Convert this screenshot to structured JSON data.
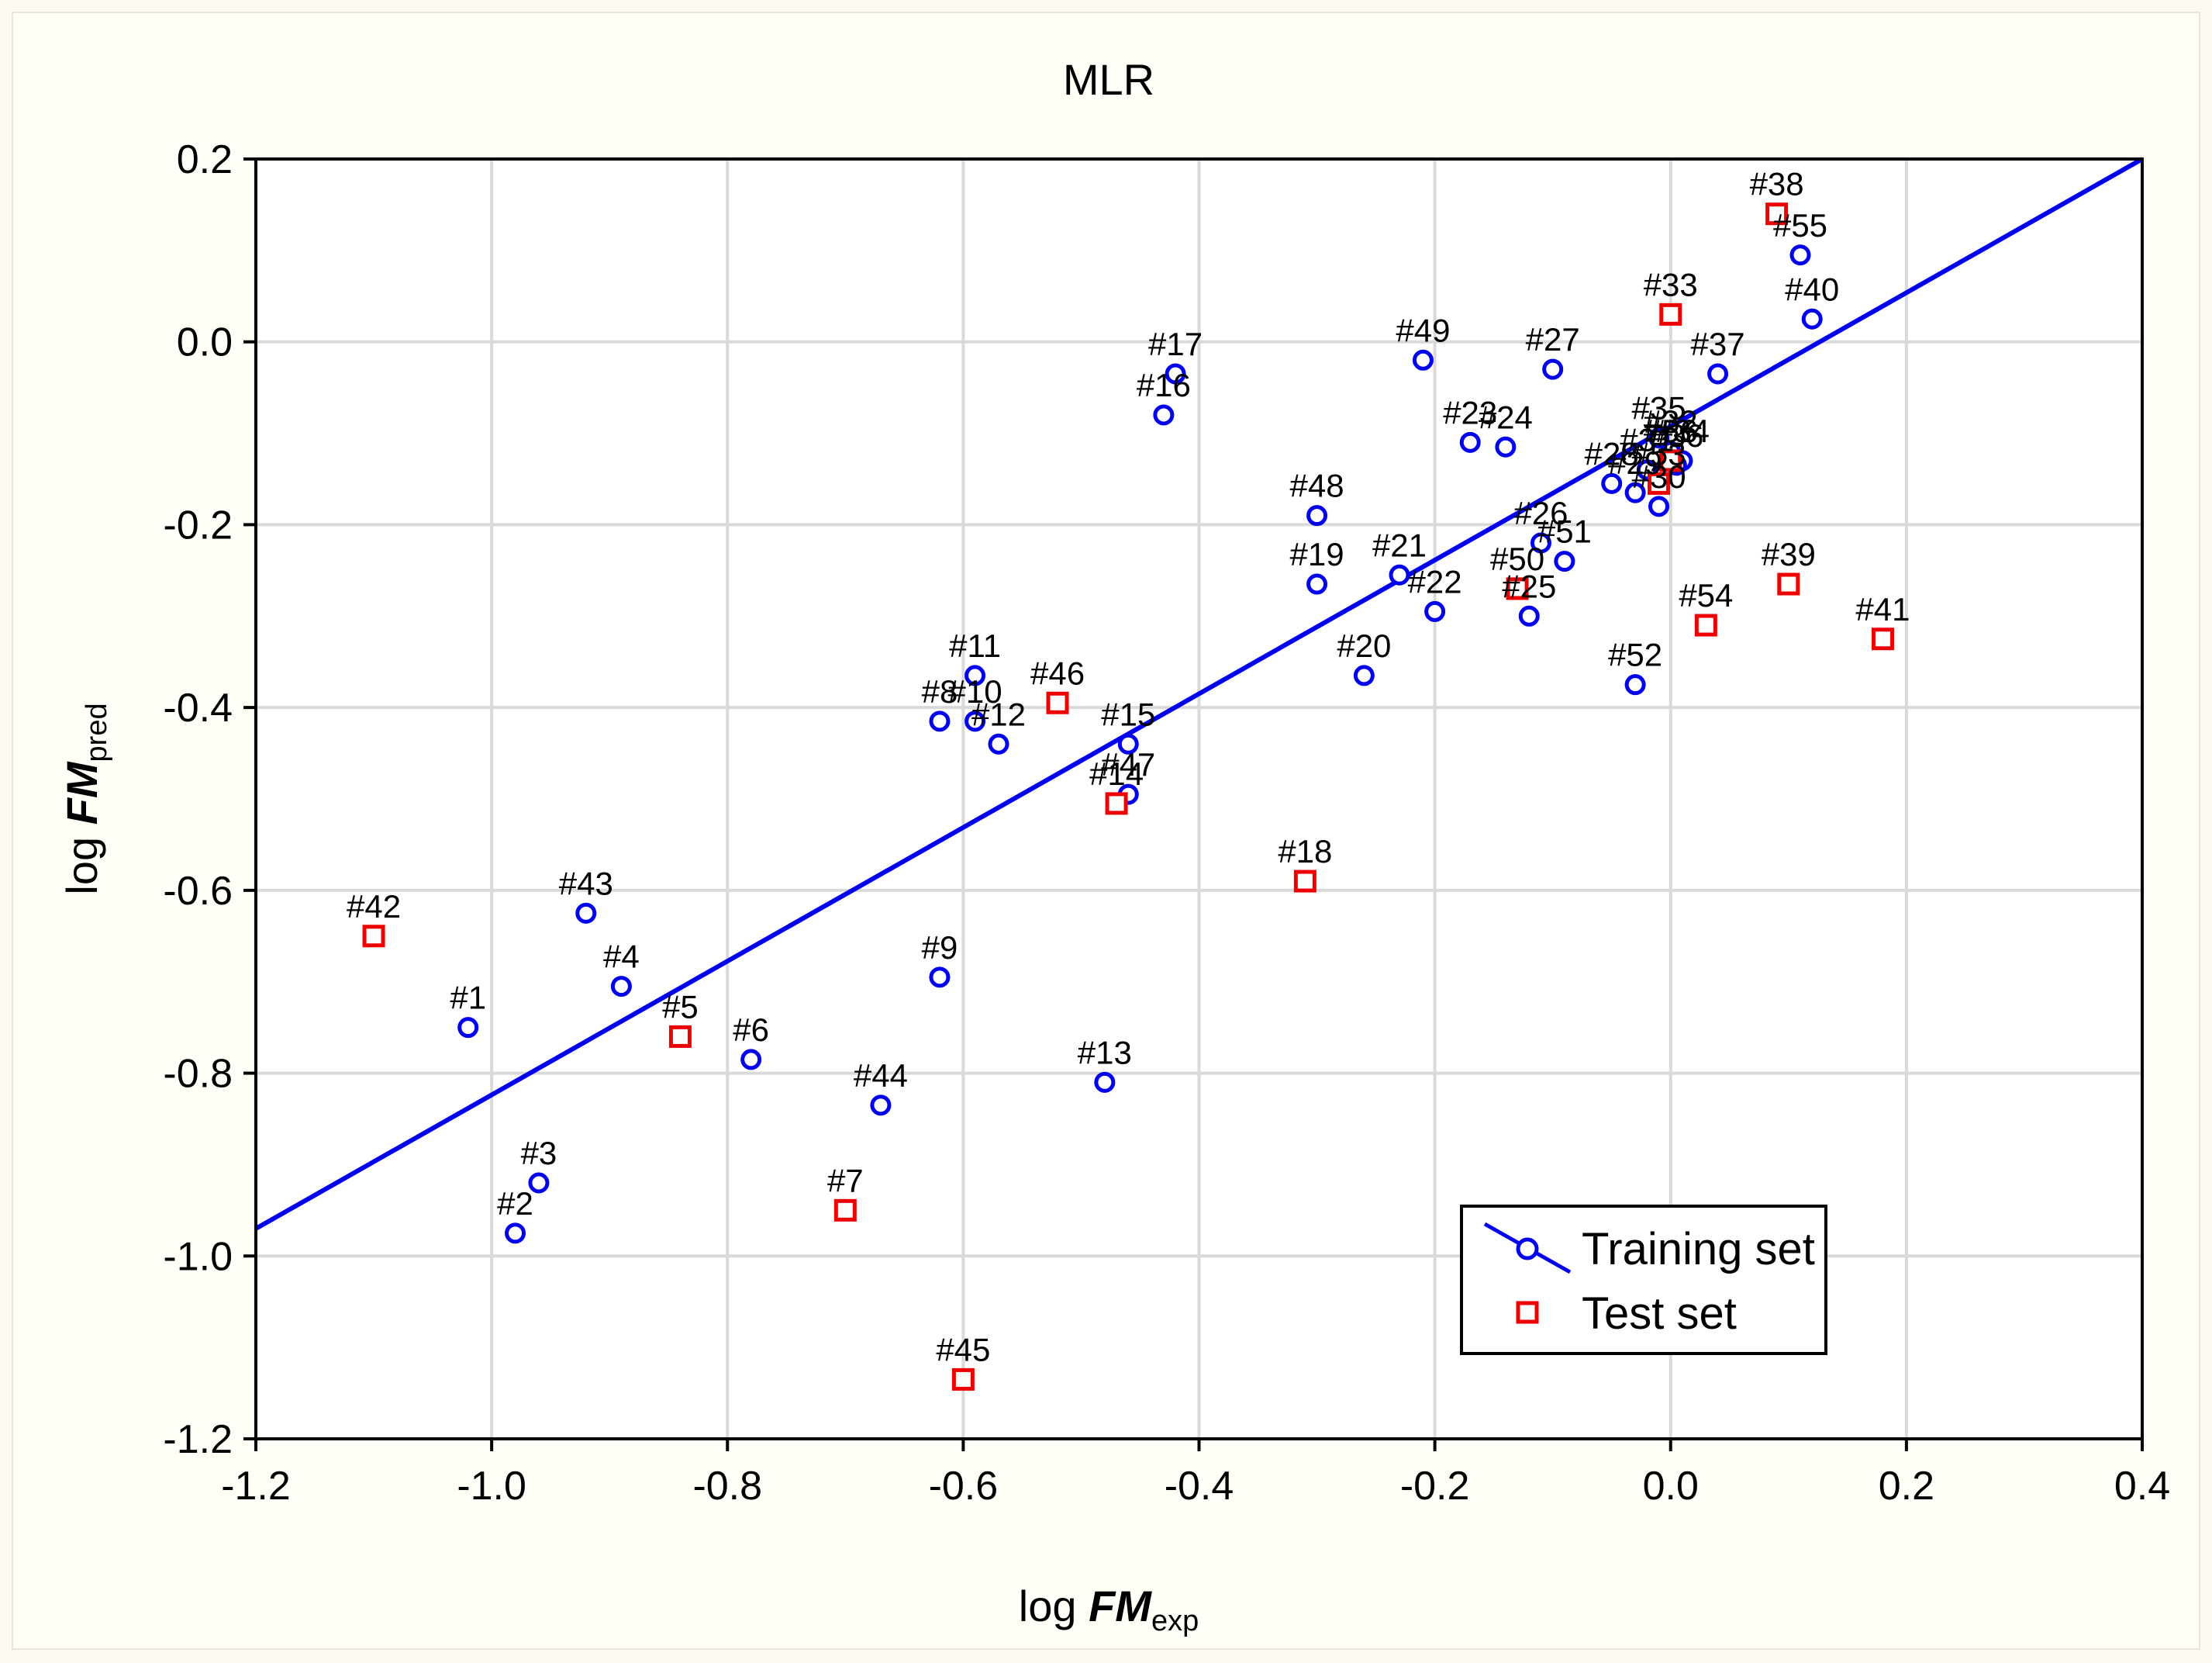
{
  "chart_data": {
    "type": "scatter",
    "title": "MLR",
    "xlabel": {
      "prefix": "log ",
      "main": "FM",
      "sub": "exp"
    },
    "ylabel": {
      "prefix": "log ",
      "main": "FM",
      "sub": "pred"
    },
    "xlim": [
      -1.2,
      0.4
    ],
    "ylim": [
      -1.2,
      0.2
    ],
    "xticks": [
      -1.2,
      -1.0,
      -0.8,
      -0.6,
      -0.4,
      -0.2,
      0.0,
      0.2,
      0.4
    ],
    "yticks": [
      -1.2,
      -1.0,
      -0.8,
      -0.6,
      -0.4,
      -0.2,
      0.0,
      0.2
    ],
    "xtick_labels": [
      "-1.2",
      "-1.0",
      "-0.8",
      "-0.6",
      "-0.4",
      "-0.2",
      "0.0",
      "0.2",
      "0.4"
    ],
    "ytick_labels": [
      "-1.2",
      "-1.0",
      "-0.8",
      "-0.6",
      "-0.4",
      "-0.2",
      "0.0",
      "0.2"
    ],
    "grid": true,
    "legend_position": "bottom-right",
    "fit_line": {
      "x": [
        -1.2,
        0.4
      ],
      "y": [
        -0.97,
        0.2
      ]
    },
    "series": [
      {
        "name": "Training set",
        "marker": "circle",
        "color": "#0000ee",
        "points": [
          {
            "label": "#1",
            "x": -1.02,
            "y": -0.75
          },
          {
            "label": "#2",
            "x": -0.98,
            "y": -0.975
          },
          {
            "label": "#3",
            "x": -0.96,
            "y": -0.92
          },
          {
            "label": "#4",
            "x": -0.89,
            "y": -0.705
          },
          {
            "label": "#6",
            "x": -0.78,
            "y": -0.785
          },
          {
            "label": "#8",
            "x": -0.62,
            "y": -0.415
          },
          {
            "label": "#9",
            "x": -0.62,
            "y": -0.695
          },
          {
            "label": "#10",
            "x": -0.59,
            "y": -0.415
          },
          {
            "label": "#11",
            "x": -0.59,
            "y": -0.365
          },
          {
            "label": "#12",
            "x": -0.57,
            "y": -0.44
          },
          {
            "label": "#13",
            "x": -0.48,
            "y": -0.81
          },
          {
            "label": "#15",
            "x": -0.46,
            "y": -0.44
          },
          {
            "label": "#16",
            "x": -0.43,
            "y": -0.08
          },
          {
            "label": "#17",
            "x": -0.42,
            "y": -0.035
          },
          {
            "label": "#47",
            "x": -0.46,
            "y": -0.495
          },
          {
            "label": "#19",
            "x": -0.3,
            "y": -0.265
          },
          {
            "label": "#48",
            "x": -0.3,
            "y": -0.19
          },
          {
            "label": "#20",
            "x": -0.26,
            "y": -0.365
          },
          {
            "label": "#21",
            "x": -0.23,
            "y": -0.255
          },
          {
            "label": "#22",
            "x": -0.2,
            "y": -0.295
          },
          {
            "label": "#49",
            "x": -0.21,
            "y": -0.02
          },
          {
            "label": "#23",
            "x": -0.17,
            "y": -0.11
          },
          {
            "label": "#24",
            "x": -0.14,
            "y": -0.115
          },
          {
            "label": "#25",
            "x": -0.12,
            "y": -0.3
          },
          {
            "label": "#26",
            "x": -0.11,
            "y": -0.22
          },
          {
            "label": "#27",
            "x": -0.1,
            "y": -0.03
          },
          {
            "label": "#51",
            "x": -0.09,
            "y": -0.24
          },
          {
            "label": "#44",
            "x": -0.67,
            "y": -0.835
          },
          {
            "label": "#43",
            "x": -0.92,
            "y": -0.625
          },
          {
            "label": "#52",
            "x": -0.03,
            "y": -0.375
          },
          {
            "label": "#28",
            "x": -0.05,
            "y": -0.155
          },
          {
            "label": "#29",
            "x": -0.03,
            "y": -0.165
          },
          {
            "label": "#30",
            "x": -0.01,
            "y": -0.18
          },
          {
            "label": "#31",
            "x": -0.02,
            "y": -0.14
          },
          {
            "label": "#32",
            "x": 0.0,
            "y": -0.12
          },
          {
            "label": "#34",
            "x": 0.01,
            "y": -0.13
          },
          {
            "label": "#35",
            "x": -0.01,
            "y": -0.105
          },
          {
            "label": "#36",
            "x": 0.005,
            "y": -0.135
          },
          {
            "label": "#37",
            "x": 0.04,
            "y": -0.035
          },
          {
            "label": "#40",
            "x": 0.12,
            "y": 0.025
          },
          {
            "label": "#55",
            "x": 0.11,
            "y": 0.095
          }
        ]
      },
      {
        "name": "Test set",
        "marker": "square",
        "color": "#ee0000",
        "points": [
          {
            "label": "#42",
            "x": -1.1,
            "y": -0.65
          },
          {
            "label": "#5",
            "x": -0.84,
            "y": -0.76
          },
          {
            "label": "#7",
            "x": -0.7,
            "y": -0.95
          },
          {
            "label": "#45",
            "x": -0.6,
            "y": -1.135
          },
          {
            "label": "#46",
            "x": -0.52,
            "y": -0.395
          },
          {
            "label": "#14",
            "x": -0.47,
            "y": -0.505
          },
          {
            "label": "#18",
            "x": -0.31,
            "y": -0.59
          },
          {
            "label": "#50",
            "x": -0.13,
            "y": -0.27
          },
          {
            "label": "#53",
            "x": -0.01,
            "y": -0.155
          },
          {
            "label": "#33",
            "x": 0.0,
            "y": 0.03
          },
          {
            "label": "#56",
            "x": 0.0,
            "y": -0.13
          },
          {
            "label": "#54",
            "x": 0.03,
            "y": -0.31
          },
          {
            "label": "#38",
            "x": 0.09,
            "y": 0.14
          },
          {
            "label": "#39",
            "x": 0.1,
            "y": -0.265
          },
          {
            "label": "#41",
            "x": 0.18,
            "y": -0.325
          }
        ]
      }
    ]
  }
}
